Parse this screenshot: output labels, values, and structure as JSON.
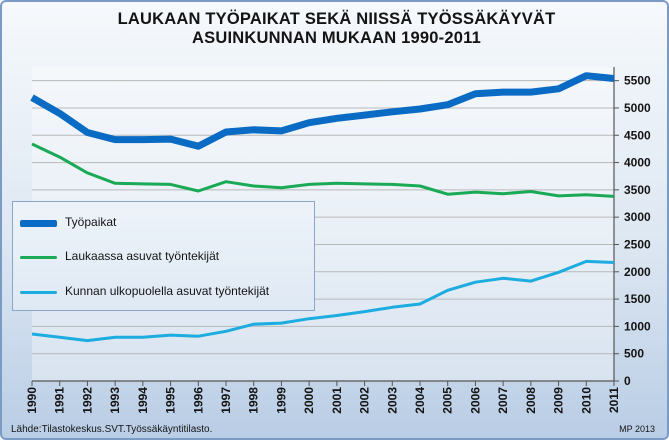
{
  "chart_data": {
    "type": "line",
    "title_lines": [
      "LAUKAAN TYÖPAIKAT SEKÄ NIISSÄ TYÖSSÄKÄYVÄT",
      "ASUINKUNNAN MUKAAN 1990-2011"
    ],
    "x": [
      "1990",
      "1991",
      "1992",
      "1993",
      "1994",
      "1995",
      "1996",
      "1997",
      "1998",
      "1999",
      "2000",
      "2001",
      "2002",
      "2003",
      "2004",
      "2005",
      "2006",
      "2007",
      "2008",
      "2009",
      "2010",
      "2011"
    ],
    "series": [
      {
        "name": "Työpaikat",
        "color": "#0a6bc4",
        "values": [
          5190,
          4900,
          4550,
          4420,
          4420,
          4430,
          4300,
          4560,
          4600,
          4580,
          4730,
          4810,
          4870,
          4930,
          4980,
          5060,
          5260,
          5290,
          5290,
          5350,
          5590,
          5540
        ]
      },
      {
        "name": "Laukaassa asuvat työntekijät",
        "color": "#1aaa55",
        "values": [
          4340,
          4100,
          3810,
          3620,
          3610,
          3600,
          3480,
          3650,
          3570,
          3540,
          3600,
          3620,
          3610,
          3600,
          3570,
          3420,
          3460,
          3430,
          3470,
          3390,
          3410,
          3380
        ]
      },
      {
        "name": "Kunnan ulkopuolella asuvat työntekijät",
        "color": "#1cacdf",
        "values": [
          860,
          800,
          740,
          800,
          800,
          840,
          820,
          910,
          1040,
          1060,
          1140,
          1200,
          1270,
          1350,
          1410,
          1660,
          1810,
          1880,
          1830,
          1990,
          2190,
          2170
        ]
      }
    ],
    "y_ticks": [
      "0",
      "500",
      "1000",
      "1500",
      "2000",
      "2500",
      "3000",
      "3500",
      "4000",
      "4500",
      "5000",
      "5500"
    ],
    "ylim": [
      0,
      5750
    ],
    "y_axis_side": "right",
    "grid": true,
    "legend_position": "left-middle"
  },
  "footer": {
    "source": "Lähde:Tilastokeskus.SVT.Työssäkäyntitilasto.",
    "credit": "MP 2013"
  }
}
